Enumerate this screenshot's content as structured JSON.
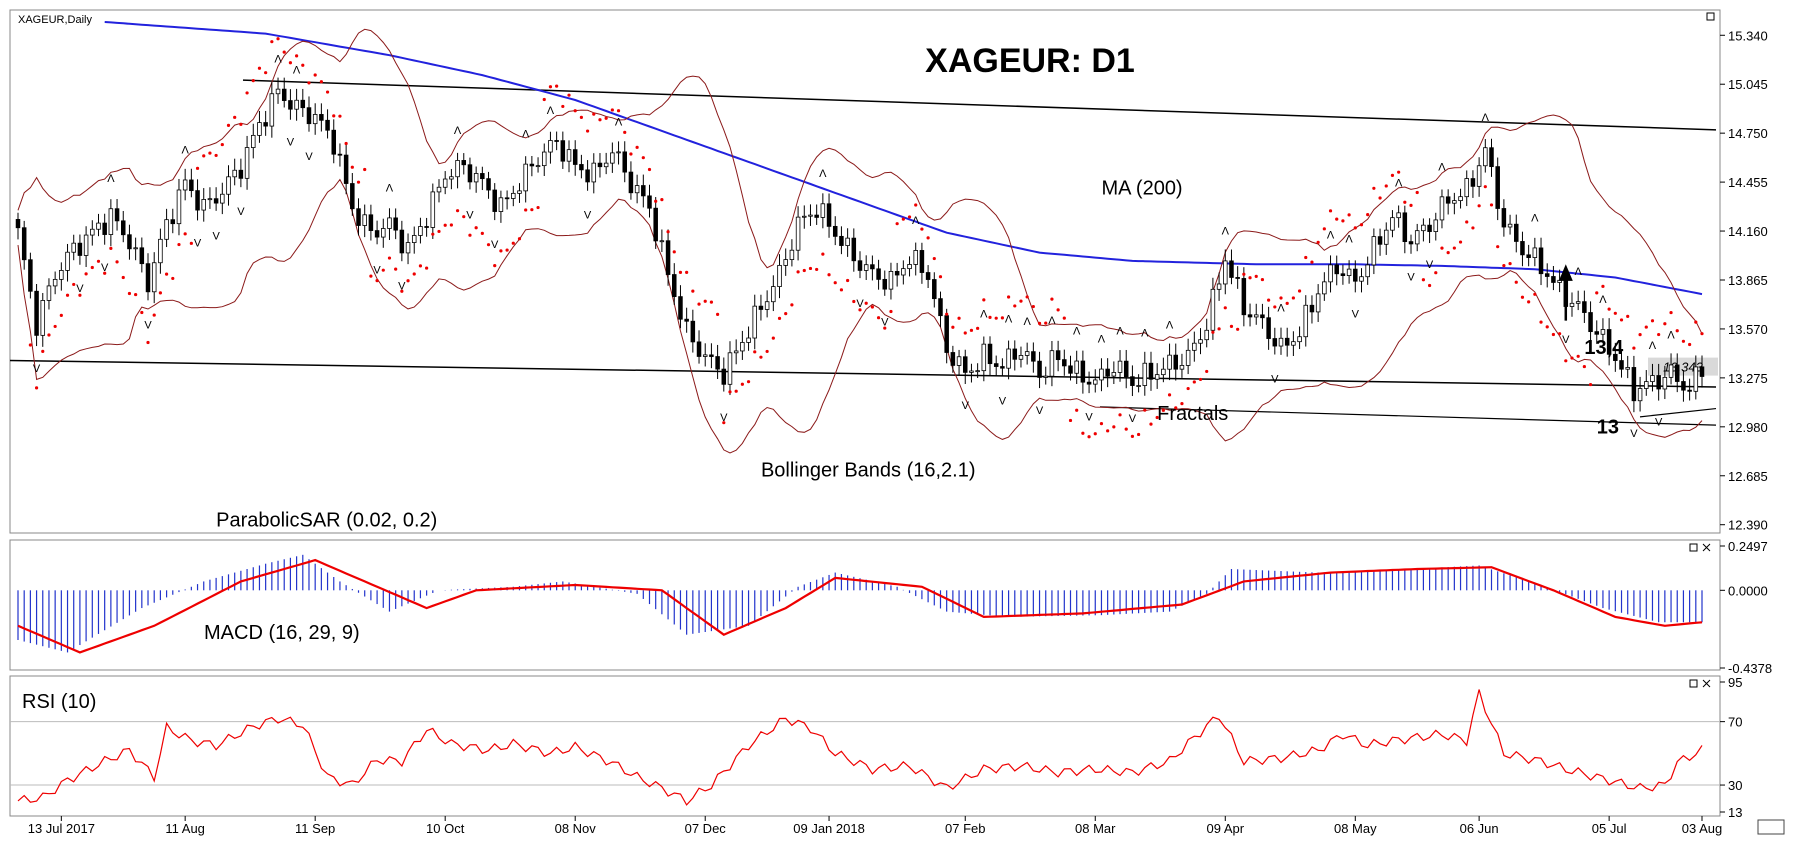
{
  "chart_data": [
    {
      "type": "candlestick",
      "title": "XAGEUR: D1",
      "symbol_label": "XAGEUR,Daily",
      "y_ticks": [
        "15.340",
        "15.045",
        "14.750",
        "14.455",
        "14.160",
        "13.865",
        "13.570",
        "13.275",
        "12.980",
        "12.685",
        "12.390"
      ],
      "ylim": [
        12.34,
        15.42
      ],
      "current_price": "13.343",
      "x_ticks": [
        "13 Jul 2017",
        "11 Aug",
        "11 Sep",
        "10 Oct",
        "08 Nov",
        "07 Dec",
        "09 Jan 2018",
        "07 Feb",
        "08 Mar",
        "09 Apr",
        "08 May",
        "06 Jun",
        "05 Jul",
        "03 Aug"
      ],
      "close_path": [
        [
          0,
          14.15
        ],
        [
          3,
          13.6
        ],
        [
          6,
          13.9
        ],
        [
          9,
          14.05
        ],
        [
          12,
          14.15
        ],
        [
          15,
          14.25
        ],
        [
          18,
          14.1
        ],
        [
          21,
          13.85
        ],
        [
          24,
          14.2
        ],
        [
          27,
          14.45
        ],
        [
          30,
          14.3
        ],
        [
          33,
          14.4
        ],
        [
          36,
          14.55
        ],
        [
          39,
          14.8
        ],
        [
          42,
          15.0
        ],
        [
          45,
          14.9
        ],
        [
          48,
          14.85
        ],
        [
          51,
          14.7
        ],
        [
          54,
          14.3
        ],
        [
          57,
          14.15
        ],
        [
          60,
          14.2
        ],
        [
          63,
          14.05
        ],
        [
          66,
          14.25
        ],
        [
          69,
          14.5
        ],
        [
          72,
          14.55
        ],
        [
          75,
          14.45
        ],
        [
          78,
          14.3
        ],
        [
          81,
          14.45
        ],
        [
          84,
          14.6
        ],
        [
          87,
          14.7
        ],
        [
          90,
          14.55
        ],
        [
          93,
          14.5
        ],
        [
          96,
          14.65
        ],
        [
          99,
          14.45
        ],
        [
          102,
          14.3
        ],
        [
          105,
          13.9
        ],
        [
          108,
          13.55
        ],
        [
          111,
          13.4
        ],
        [
          114,
          13.3
        ],
        [
          117,
          13.5
        ],
        [
          120,
          13.7
        ],
        [
          123,
          13.9
        ],
        [
          126,
          14.2
        ],
        [
          129,
          14.3
        ],
        [
          132,
          14.15
        ],
        [
          135,
          14.0
        ],
        [
          138,
          13.9
        ],
        [
          141,
          13.85
        ],
        [
          144,
          14.0
        ],
        [
          147,
          13.9
        ],
        [
          150,
          13.45
        ],
        [
          153,
          13.3
        ],
        [
          156,
          13.4
        ],
        [
          159,
          13.35
        ],
        [
          162,
          13.45
        ],
        [
          165,
          13.3
        ],
        [
          168,
          13.4
        ],
        [
          171,
          13.3
        ],
        [
          174,
          13.25
        ],
        [
          177,
          13.35
        ],
        [
          180,
          13.25
        ],
        [
          183,
          13.3
        ],
        [
          186,
          13.35
        ],
        [
          189,
          13.4
        ],
        [
          192,
          13.6
        ],
        [
          195,
          14.0
        ],
        [
          198,
          13.7
        ],
        [
          201,
          13.6
        ],
        [
          204,
          13.45
        ],
        [
          207,
          13.55
        ],
        [
          210,
          13.8
        ],
        [
          213,
          13.95
        ],
        [
          216,
          13.85
        ],
        [
          219,
          14.05
        ],
        [
          222,
          14.25
        ],
        [
          225,
          14.1
        ],
        [
          228,
          14.2
        ],
        [
          231,
          14.35
        ],
        [
          234,
          14.4
        ],
        [
          237,
          14.65
        ],
        [
          240,
          14.2
        ],
        [
          243,
          14.05
        ],
        [
          246,
          13.95
        ],
        [
          249,
          13.8
        ],
        [
          252,
          13.7
        ],
        [
          255,
          13.55
        ],
        [
          258,
          13.4
        ],
        [
          261,
          13.2
        ],
        [
          264,
          13.25
        ],
        [
          267,
          13.3
        ],
        [
          270,
          13.2
        ],
        [
          272,
          13.34
        ]
      ],
      "series_labels": [
        {
          "name": "ParabolicSAR (0.02, 0.2)",
          "x": 32,
          "y": 12.38
        },
        {
          "name": "Bollinger Bands (16,2.1)",
          "x": 120,
          "y": 12.68
        },
        {
          "name": "Fractals",
          "x": 184,
          "y": 13.02
        },
        {
          "name": "MA (200)",
          "x": 175,
          "y": 14.38
        }
      ],
      "annotations": [
        {
          "text": "13,4",
          "x": 253,
          "y": 13.42
        },
        {
          "text": "13",
          "x": 255,
          "y": 12.94
        }
      ],
      "x_max": 272,
      "tick_x": [
        7,
        27,
        48,
        69,
        90,
        111,
        131,
        153,
        174,
        195,
        216,
        236,
        257,
        272
      ]
    },
    {
      "type": "bar",
      "title": "MACD (16, 29, 9)",
      "y_ticks": [
        "0.2497",
        "0.0000",
        "-0.4378"
      ],
      "ylim": [
        -0.4378,
        0.2497
      ],
      "histogram_path": [
        [
          0,
          -0.28
        ],
        [
          8,
          -0.35
        ],
        [
          20,
          -0.1
        ],
        [
          30,
          0.05
        ],
        [
          40,
          0.15
        ],
        [
          46,
          0.2
        ],
        [
          52,
          0.05
        ],
        [
          60,
          -0.12
        ],
        [
          68,
          0.0
        ],
        [
          80,
          0.02
        ],
        [
          88,
          0.05
        ],
        [
          100,
          -0.02
        ],
        [
          108,
          -0.25
        ],
        [
          118,
          -0.2
        ],
        [
          126,
          0.02
        ],
        [
          132,
          0.1
        ],
        [
          142,
          0.02
        ],
        [
          150,
          -0.12
        ],
        [
          160,
          -0.15
        ],
        [
          175,
          -0.14
        ],
        [
          186,
          -0.12
        ],
        [
          192,
          -0.02
        ],
        [
          196,
          0.12
        ],
        [
          210,
          0.1
        ],
        [
          225,
          0.12
        ],
        [
          236,
          0.14
        ],
        [
          246,
          0.03
        ],
        [
          256,
          -0.1
        ],
        [
          265,
          -0.18
        ],
        [
          272,
          -0.18
        ]
      ],
      "signal_path": [
        [
          0,
          -0.2
        ],
        [
          10,
          -0.35
        ],
        [
          22,
          -0.2
        ],
        [
          36,
          0.05
        ],
        [
          48,
          0.17
        ],
        [
          56,
          0.05
        ],
        [
          66,
          -0.1
        ],
        [
          74,
          0.0
        ],
        [
          90,
          0.03
        ],
        [
          104,
          0.0
        ],
        [
          114,
          -0.25
        ],
        [
          124,
          -0.1
        ],
        [
          132,
          0.07
        ],
        [
          146,
          0.02
        ],
        [
          156,
          -0.15
        ],
        [
          172,
          -0.13
        ],
        [
          188,
          -0.08
        ],
        [
          198,
          0.05
        ],
        [
          212,
          0.1
        ],
        [
          226,
          0.12
        ],
        [
          238,
          0.13
        ],
        [
          248,
          0.0
        ],
        [
          258,
          -0.15
        ],
        [
          266,
          -0.2
        ],
        [
          272,
          -0.18
        ]
      ]
    },
    {
      "type": "line",
      "title": "RSI (10)",
      "y_ticks": [
        "95",
        "70",
        "30",
        "13"
      ],
      "ylim": [
        13,
        95
      ],
      "values_path": [
        [
          0,
          20
        ],
        [
          4,
          22
        ],
        [
          8,
          33
        ],
        [
          14,
          45
        ],
        [
          18,
          52
        ],
        [
          22,
          35
        ],
        [
          24,
          66
        ],
        [
          28,
          58
        ],
        [
          32,
          55
        ],
        [
          38,
          67
        ],
        [
          42,
          72
        ],
        [
          46,
          68
        ],
        [
          50,
          35
        ],
        [
          54,
          30
        ],
        [
          58,
          46
        ],
        [
          62,
          45
        ],
        [
          66,
          65
        ],
        [
          70,
          56
        ],
        [
          76,
          52
        ],
        [
          80,
          56
        ],
        [
          86,
          50
        ],
        [
          90,
          54
        ],
        [
          96,
          44
        ],
        [
          100,
          35
        ],
        [
          104,
          28
        ],
        [
          108,
          20
        ],
        [
          112,
          30
        ],
        [
          118,
          55
        ],
        [
          124,
          72
        ],
        [
          128,
          66
        ],
        [
          132,
          50
        ],
        [
          138,
          40
        ],
        [
          144,
          42
        ],
        [
          150,
          28
        ],
        [
          156,
          40
        ],
        [
          162,
          42
        ],
        [
          168,
          38
        ],
        [
          174,
          40
        ],
        [
          180,
          38
        ],
        [
          186,
          45
        ],
        [
          190,
          60
        ],
        [
          194,
          74
        ],
        [
          198,
          45
        ],
        [
          204,
          47
        ],
        [
          210,
          52
        ],
        [
          214,
          62
        ],
        [
          218,
          55
        ],
        [
          222,
          58
        ],
        [
          226,
          60
        ],
        [
          230,
          62
        ],
        [
          234,
          58
        ],
        [
          236,
          88
        ],
        [
          240,
          50
        ],
        [
          246,
          45
        ],
        [
          250,
          40
        ],
        [
          254,
          36
        ],
        [
          258,
          32
        ],
        [
          262,
          28
        ],
        [
          266,
          30
        ],
        [
          268,
          44
        ],
        [
          272,
          52
        ]
      ]
    }
  ]
}
